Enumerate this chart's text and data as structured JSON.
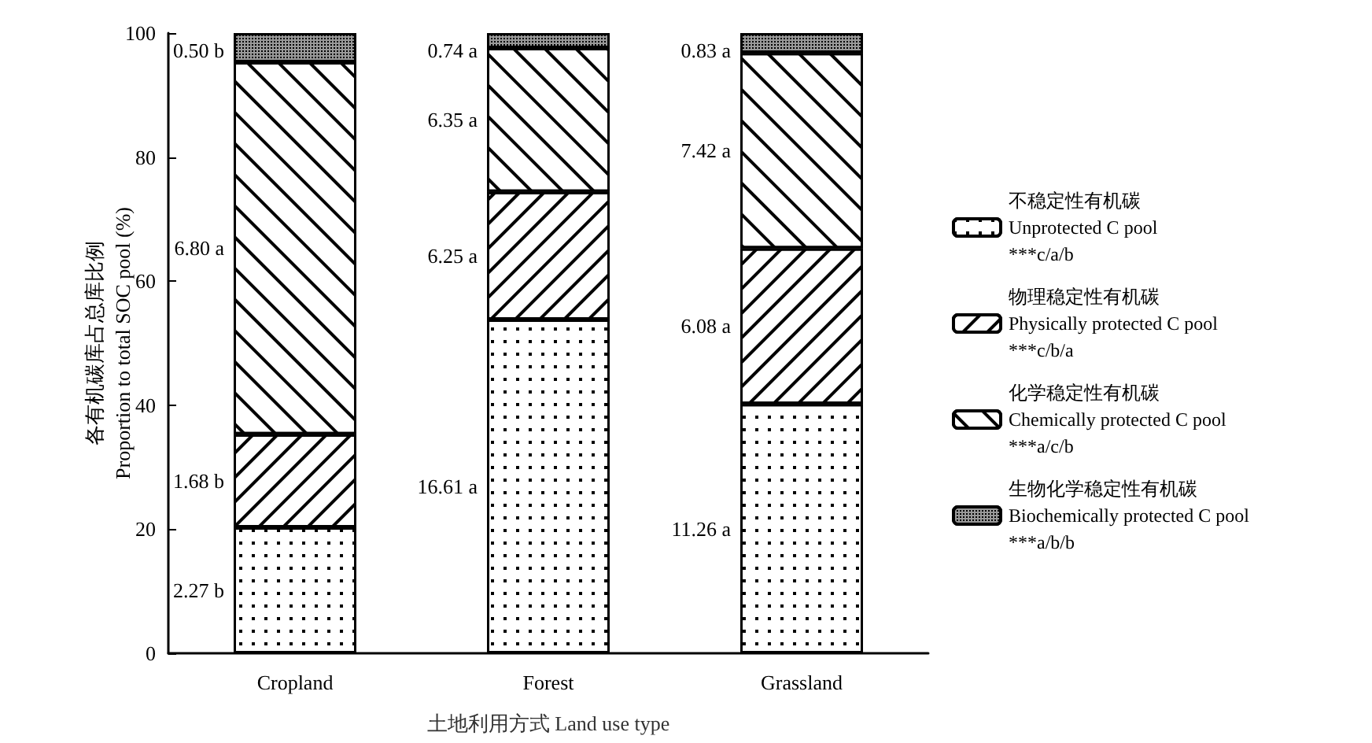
{
  "chart_data": {
    "type": "bar",
    "stacked": true,
    "xlabel": "土地利用方式 Land use type",
    "ylabel": "各有机碳库占总库比例\nProportion to total SOC pool (%)",
    "categories": [
      "Cropland",
      "Forest",
      "Grassland"
    ],
    "series": [
      {
        "name": "不稳定性有机碳\nUnprotected C pool\n***c/a/b",
        "color": "#ffffff",
        "values": [
          20.3,
          53.8,
          40.2
        ]
      },
      {
        "name": "物理稳定性有机碳\nPhysically protected C pool\n***c/b/a",
        "color": "#ffffff",
        "values": [
          15.0,
          20.6,
          25.1
        ]
      },
      {
        "name": "化学稳定性有机碳\nChemically protected C pool\n***a/c/b",
        "color": "#ffffff",
        "values": [
          60.0,
          23.2,
          31.5
        ]
      },
      {
        "name": "生物化学稳定性有机碳\nBiochemically protected C pool\n***a/b/b",
        "color": "#999999",
        "values": [
          4.7,
          2.4,
          3.2
        ]
      }
    ],
    "ylim": [
      0,
      100
    ],
    "yticks": [
      0,
      20,
      40,
      60,
      80,
      100
    ],
    "grid": false,
    "legend": "right",
    "annotations": [
      "0.50 b",
      "6.80 a",
      "1.68 b",
      "2.27 b",
      "0.74 a",
      "6.35 a",
      "6.25 a",
      "16.61 a",
      "0.83 a",
      "7.42 a",
      "6.08 a",
      "11.26 a"
    ]
  }
}
